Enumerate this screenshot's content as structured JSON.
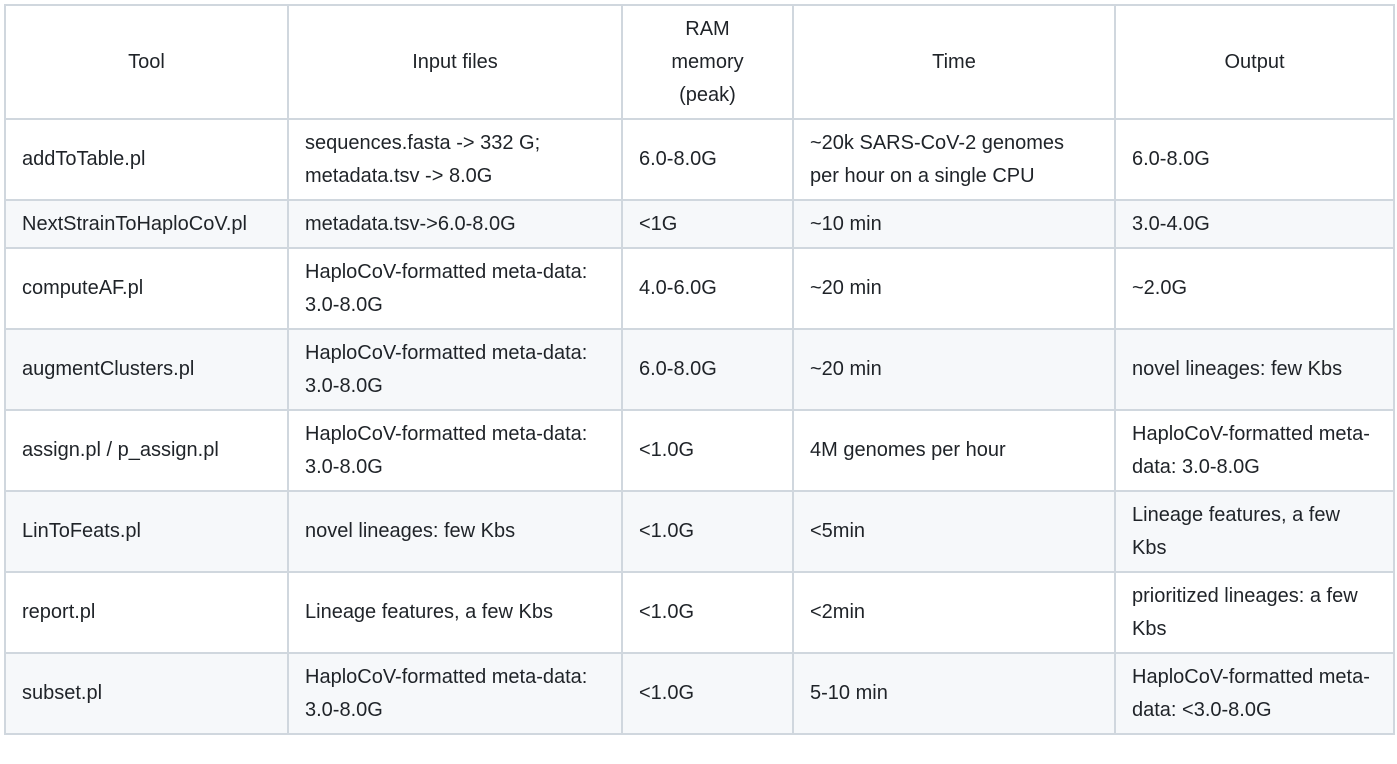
{
  "table": {
    "headers": {
      "tool": "Tool",
      "input": "Input files",
      "ram_line1": "RAM",
      "ram_line2": "memory",
      "ram_line3": "(peak)",
      "time": "Time",
      "output": "Output"
    },
    "rows": [
      {
        "tool": "addToTable.pl",
        "input": "sequences.fasta -> 332 G; metadata.tsv -> 8.0G",
        "ram": "6.0-8.0G",
        "time": "~20k SARS-CoV-2 genomes per hour on a single CPU",
        "output": "6.0-8.0G"
      },
      {
        "tool": "NextStrainToHaploCoV.pl",
        "input": "metadata.tsv->6.0-8.0G",
        "ram": "<1G",
        "time": "~10 min",
        "output": "3.0-4.0G"
      },
      {
        "tool": "computeAF.pl",
        "input": "HaploCoV-formatted meta-data: 3.0-8.0G",
        "ram": "4.0-6.0G",
        "time": "~20 min",
        "output": "~2.0G"
      },
      {
        "tool": "augmentClusters.pl",
        "input": "HaploCoV-formatted meta-data: 3.0-8.0G",
        "ram": "6.0-8.0G",
        "time": "~20 min",
        "output": "novel lineages: few Kbs"
      },
      {
        "tool": "assign.pl / p_assign.pl",
        "input": "HaploCoV-formatted meta-data: 3.0-8.0G",
        "ram": "<1.0G",
        "time": "4M genomes per hour",
        "output": "HaploCoV-formatted meta-data: 3.0-8.0G"
      },
      {
        "tool": "LinToFeats.pl",
        "input": "novel lineages: few Kbs",
        "ram": "<1.0G",
        "time": "<5min",
        "output": "Lineage features, a few Kbs"
      },
      {
        "tool": "report.pl",
        "input": "Lineage features, a few Kbs",
        "ram": "<1.0G",
        "time": "<2min",
        "output": "prioritized lineages: a few Kbs"
      },
      {
        "tool": "subset.pl",
        "input": "HaploCoV-formatted meta-data: 3.0-8.0G",
        "ram": "<1.0G",
        "time": "5-10 min",
        "output": "HaploCoV-formatted meta-data: <3.0-8.0G"
      }
    ]
  }
}
